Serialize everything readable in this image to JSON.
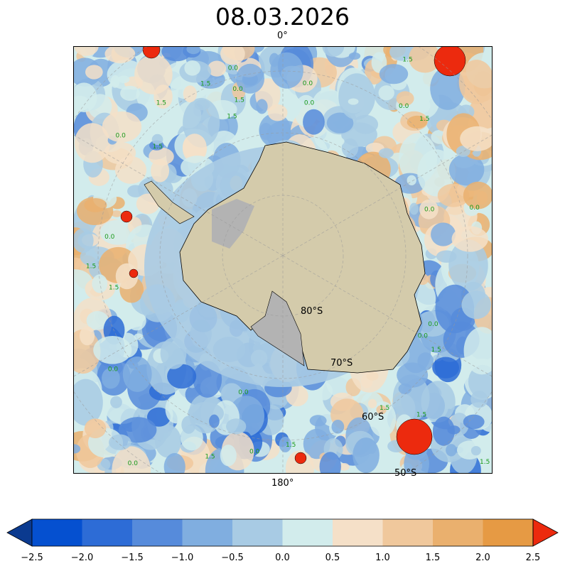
{
  "title": "08.03.2026",
  "map": {
    "top_label": "0°",
    "bottom_label": "180°",
    "lat_labels": [
      "80°S",
      "70°S",
      "60°S",
      "50°S"
    ],
    "contour_labels": [
      "0.0",
      "1.5"
    ],
    "land_color": "#d4cbab",
    "ice_color": "#b3b3b3"
  },
  "colorbar": {
    "ticks": [
      "−2.5",
      "−2.0",
      "−1.5",
      "−1.0",
      "−0.5",
      "0.0",
      "0.5",
      "1.0",
      "1.5",
      "2.0",
      "2.5"
    ],
    "under_color": "#0b3a8f",
    "over_color": "#ec2a0e",
    "colors": [
      "#0550d0",
      "#2d6cd6",
      "#568bdb",
      "#80aee0",
      "#a8cbe4",
      "#d2ecec",
      "#f5e0c8",
      "#f0c89c",
      "#eab06e",
      "#e69a44"
    ]
  }
}
